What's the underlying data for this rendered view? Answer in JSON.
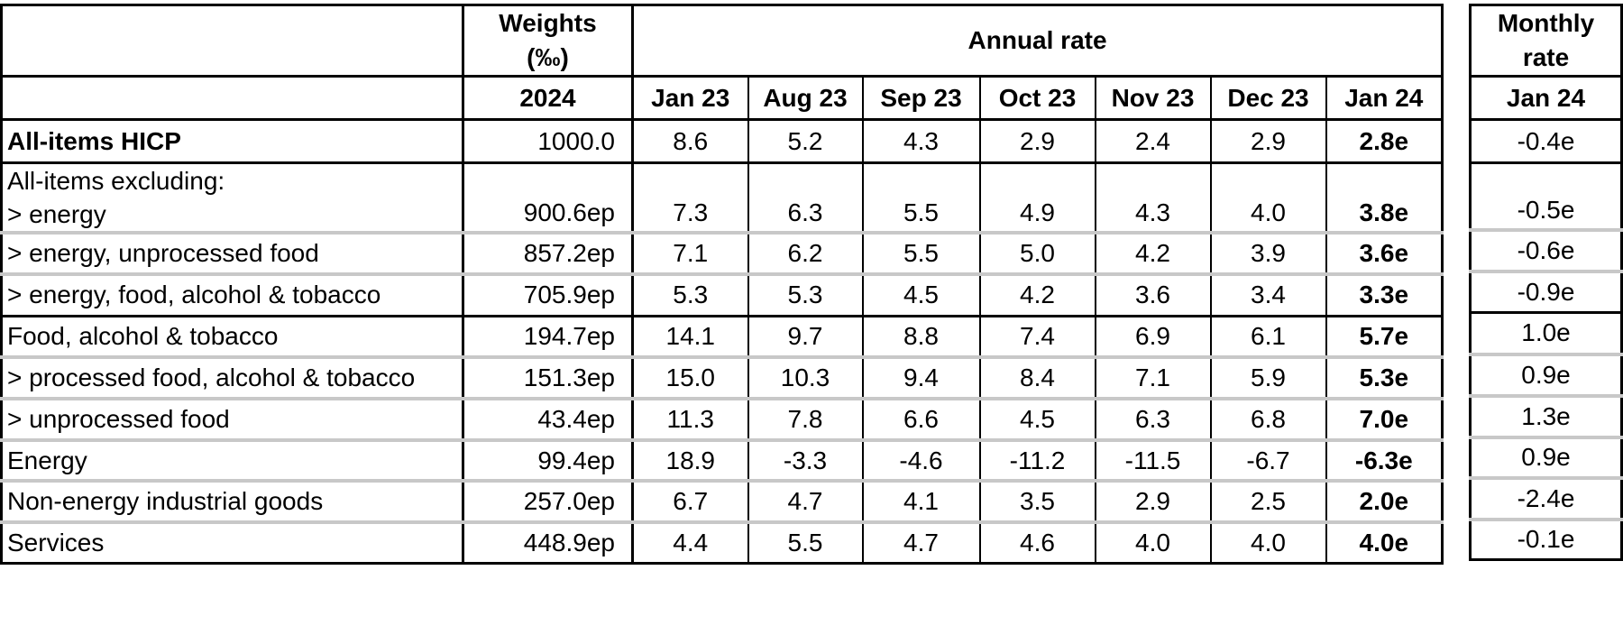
{
  "headers": {
    "weights_line1": "Weights",
    "weights_line2": "(‰)",
    "weights_year": "2024",
    "annual_rate": "Annual rate",
    "monthly_line1": "Monthly",
    "monthly_line2": "rate",
    "months": [
      "Jan 23",
      "Aug 23",
      "Sep 23",
      "Oct 23",
      "Nov 23",
      "Dec 23",
      "Jan 24"
    ],
    "monthly_month": "Jan 24"
  },
  "rows": [
    {
      "label": "All-items HICP",
      "weight": "1000.0",
      "values": [
        "8.6",
        "5.2",
        "4.3",
        "2.9",
        "2.4",
        "2.9",
        "2.8e"
      ],
      "monthly": "-0.4e"
    },
    {
      "label_intro": "All-items excluding:",
      "label": "> energy",
      "weight": "900.6ep",
      "values": [
        "7.3",
        "6.3",
        "5.5",
        "4.9",
        "4.3",
        "4.0",
        "3.8e"
      ],
      "monthly": "-0.5e"
    },
    {
      "label": "> energy, unprocessed food",
      "weight": "857.2ep",
      "values": [
        "7.1",
        "6.2",
        "5.5",
        "5.0",
        "4.2",
        "3.9",
        "3.6e"
      ],
      "monthly": "-0.6e"
    },
    {
      "label": "> energy, food, alcohol & tobacco",
      "weight": "705.9ep",
      "values": [
        "5.3",
        "5.3",
        "4.5",
        "4.2",
        "3.6",
        "3.4",
        "3.3e"
      ],
      "monthly": "-0.9e"
    },
    {
      "label": "Food, alcohol & tobacco",
      "weight": "194.7ep",
      "values": [
        "14.1",
        "9.7",
        "8.8",
        "7.4",
        "6.9",
        "6.1",
        "5.7e"
      ],
      "monthly": "1.0e"
    },
    {
      "label": "> processed food, alcohol & tobacco",
      "weight": "151.3ep",
      "values": [
        "15.0",
        "10.3",
        "9.4",
        "8.4",
        "7.1",
        "5.9",
        "5.3e"
      ],
      "monthly": "0.9e"
    },
    {
      "label": "> unprocessed food",
      "weight": "43.4ep",
      "values": [
        "11.3",
        "7.8",
        "6.6",
        "4.5",
        "6.3",
        "6.8",
        "7.0e"
      ],
      "monthly": "1.3e"
    },
    {
      "label": "Energy",
      "weight": "99.4ep",
      "values": [
        "18.9",
        "-3.3",
        "-4.6",
        "-11.2",
        "-11.5",
        "-6.7",
        "-6.3e"
      ],
      "monthly": "0.9e"
    },
    {
      "label": "Non-energy industrial goods",
      "weight": "257.0ep",
      "values": [
        "6.7",
        "4.7",
        "4.1",
        "3.5",
        "2.9",
        "2.5",
        "2.0e"
      ],
      "monthly": "-2.4e"
    },
    {
      "label": "Services",
      "weight": "448.9ep",
      "values": [
        "4.4",
        "5.5",
        "4.7",
        "4.6",
        "4.0",
        "4.0",
        "4.0e"
      ],
      "monthly": "-0.1e"
    }
  ]
}
